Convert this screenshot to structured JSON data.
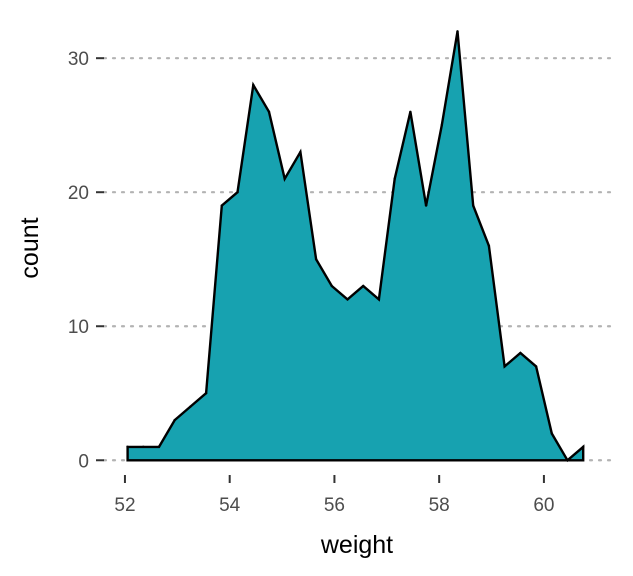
{
  "chart_data": {
    "type": "area",
    "title": "",
    "xlabel": "weight",
    "ylabel": "count",
    "xlim": [
      51.6,
      61.3
    ],
    "ylim": [
      -1.1,
      32.7
    ],
    "x_ticks": [
      52,
      54,
      56,
      58,
      60
    ],
    "y_ticks": [
      0,
      10,
      20,
      30
    ],
    "grid": "horizontal-dotted",
    "legend": "none",
    "fill_color": "#17a2b0",
    "line_color": "#000000",
    "points": [
      {
        "x": 52.05,
        "y": 1
      },
      {
        "x": 52.35,
        "y": 1
      },
      {
        "x": 52.65,
        "y": 1
      },
      {
        "x": 52.95,
        "y": 3
      },
      {
        "x": 53.25,
        "y": 4
      },
      {
        "x": 53.55,
        "y": 5
      },
      {
        "x": 53.85,
        "y": 19
      },
      {
        "x": 54.15,
        "y": 20
      },
      {
        "x": 54.45,
        "y": 28
      },
      {
        "x": 54.75,
        "y": 26
      },
      {
        "x": 55.05,
        "y": 21
      },
      {
        "x": 55.35,
        "y": 23
      },
      {
        "x": 55.65,
        "y": 15
      },
      {
        "x": 55.95,
        "y": 13
      },
      {
        "x": 56.25,
        "y": 12
      },
      {
        "x": 56.55,
        "y": 13
      },
      {
        "x": 56.85,
        "y": 12
      },
      {
        "x": 57.15,
        "y": 21
      },
      {
        "x": 57.45,
        "y": 26
      },
      {
        "x": 57.75,
        "y": 19
      },
      {
        "x": 58.05,
        "y": 25
      },
      {
        "x": 58.35,
        "y": 32
      },
      {
        "x": 58.65,
        "y": 19
      },
      {
        "x": 58.95,
        "y": 16
      },
      {
        "x": 59.25,
        "y": 7
      },
      {
        "x": 59.55,
        "y": 8
      },
      {
        "x": 59.85,
        "y": 7
      },
      {
        "x": 60.15,
        "y": 2
      },
      {
        "x": 60.45,
        "y": 0
      },
      {
        "x": 60.75,
        "y": 1
      }
    ]
  }
}
